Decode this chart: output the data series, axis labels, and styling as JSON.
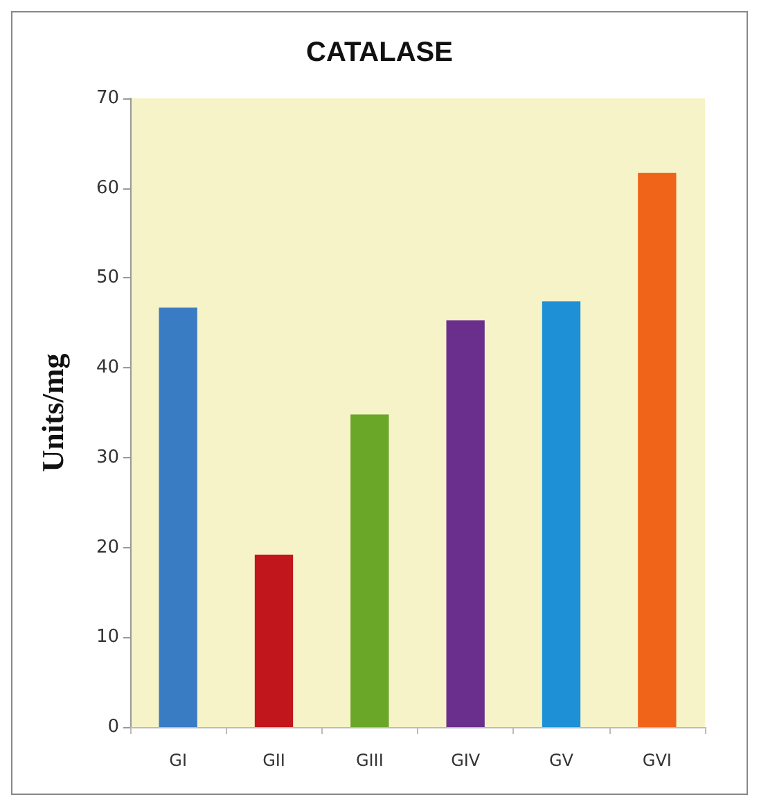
{
  "chart_data": {
    "type": "bar",
    "title": "CATALASE",
    "ylabel": "Units/mg",
    "categories": [
      "GI",
      "GII",
      "GIII",
      "GIV",
      "GV",
      "GVI"
    ],
    "values": [
      46.7,
      19.2,
      34.8,
      45.3,
      47.4,
      61.7
    ],
    "colors": [
      "#3a7cc4",
      "#c0161c",
      "#6aa628",
      "#6a2f8c",
      "#1e90d6",
      "#f0641a"
    ],
    "ylim": [
      0,
      70
    ],
    "yticks": [
      0,
      10,
      20,
      30,
      40,
      50,
      60,
      70
    ],
    "grid": false
  }
}
